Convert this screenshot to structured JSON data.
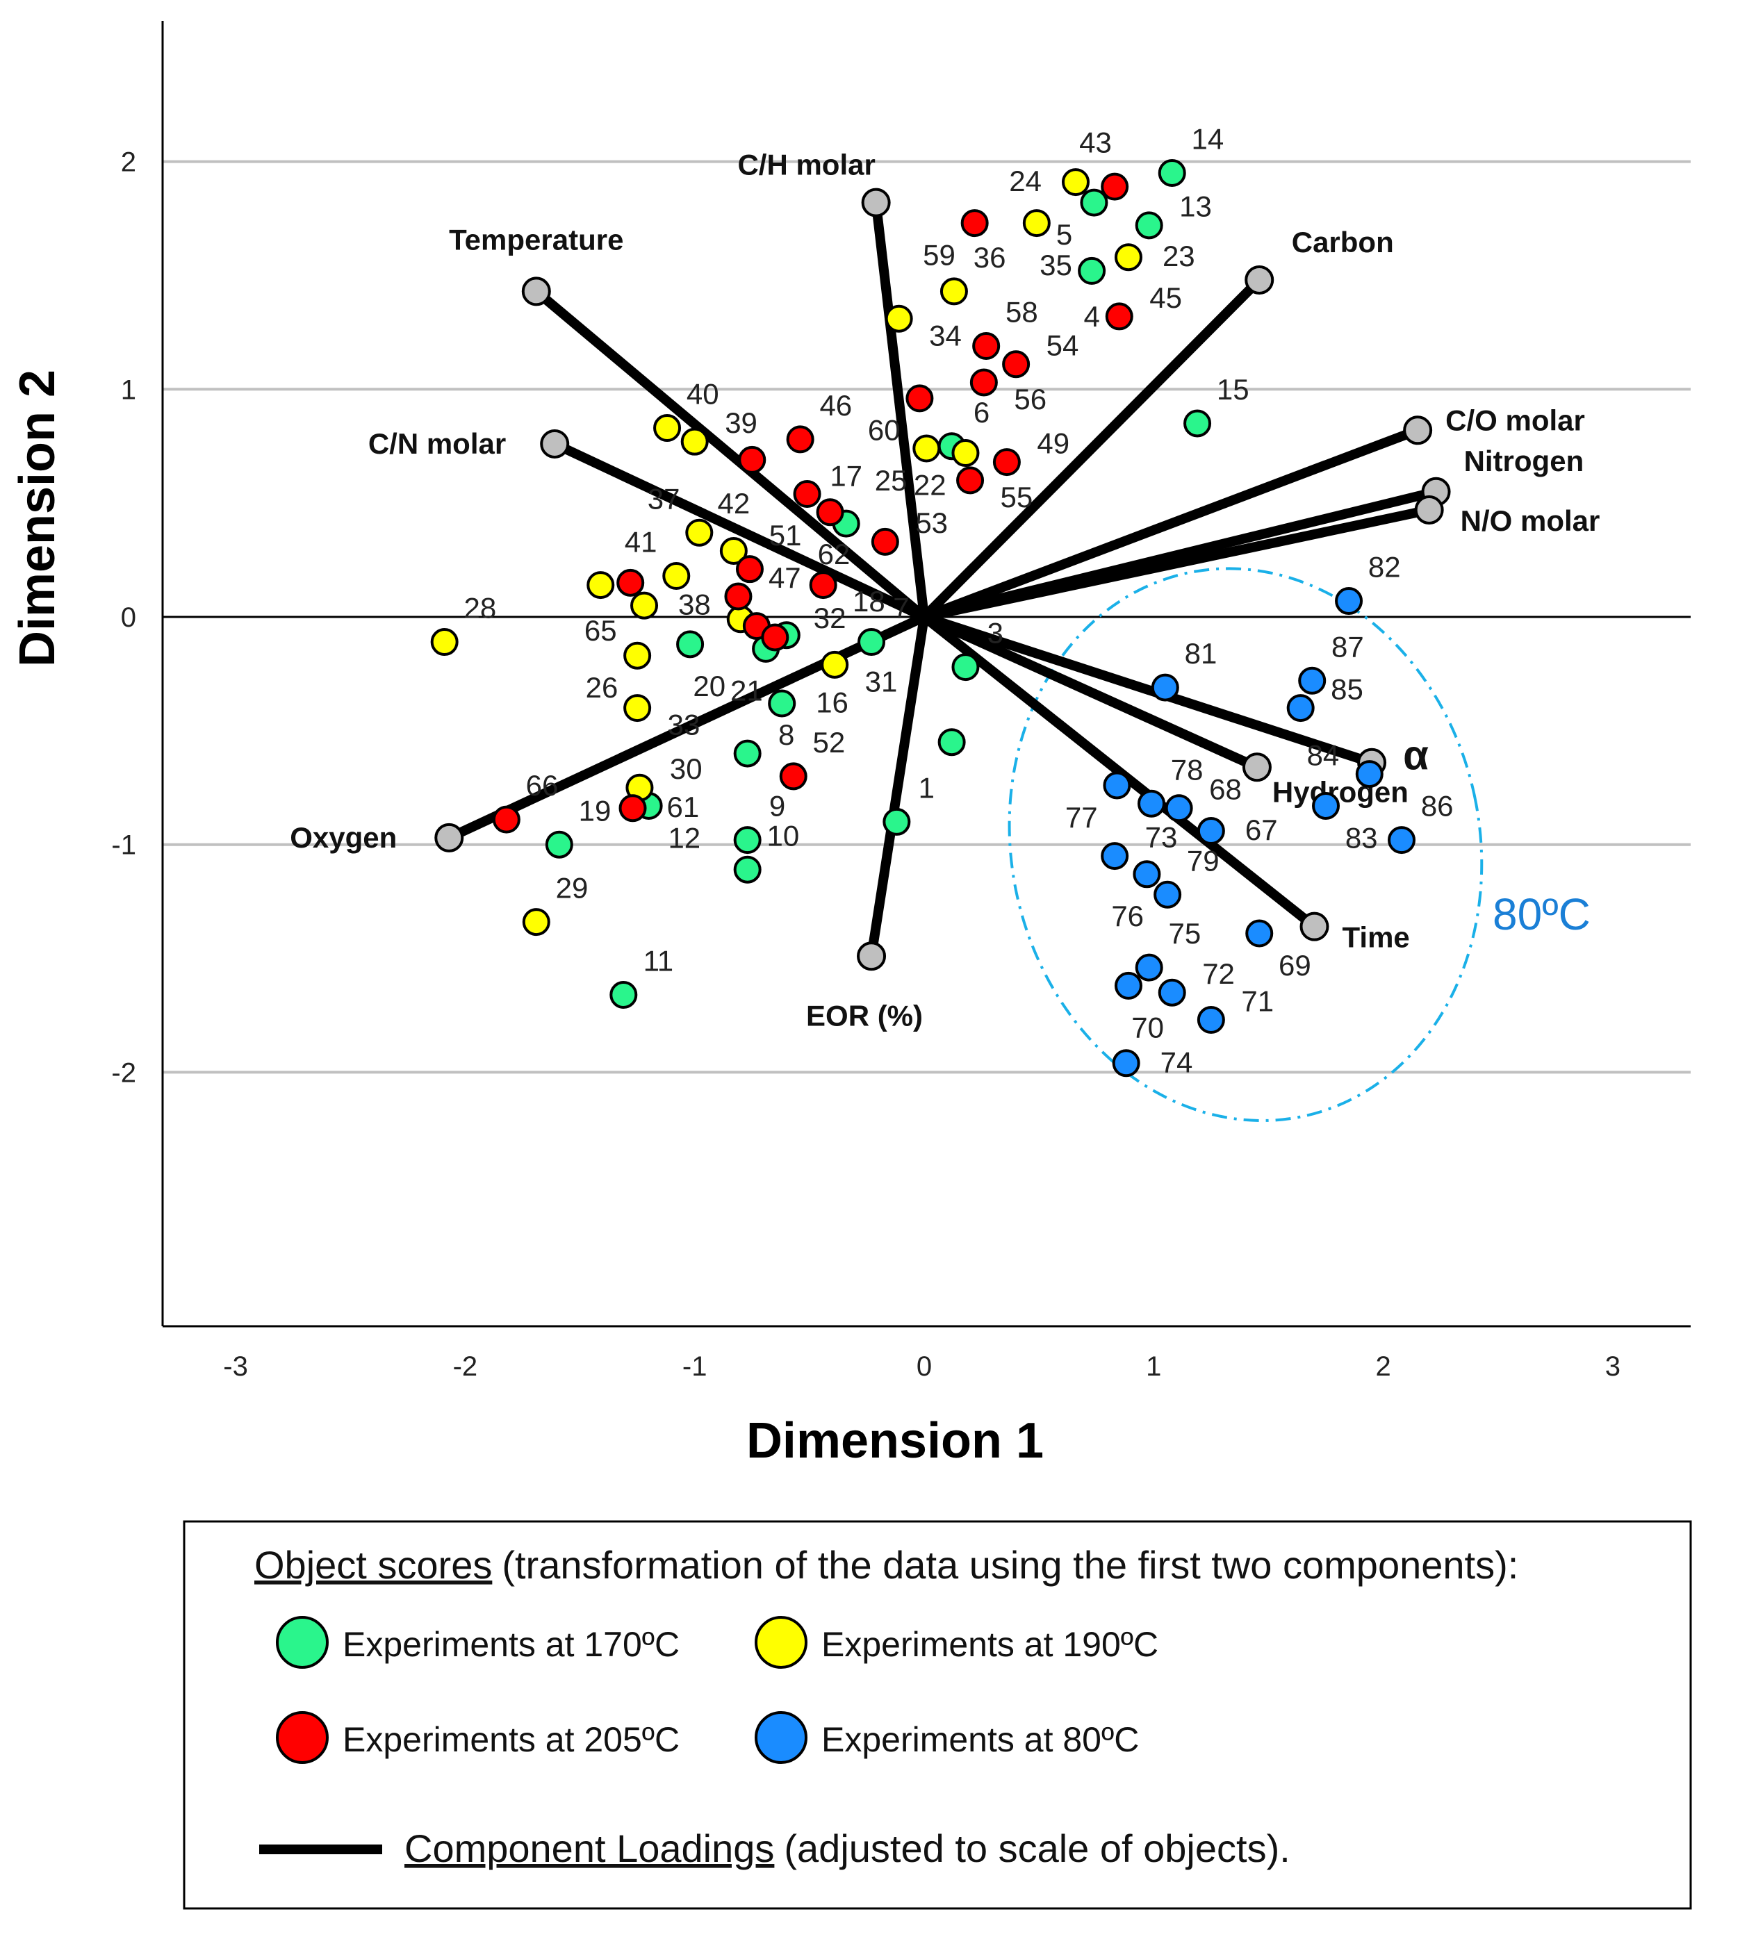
{
  "chart_data": {
    "type": "scatter",
    "subtype": "biplot",
    "xlabel": "Dimension 1",
    "ylabel": "Dimension 2",
    "xlim": [
      -3.32,
      3.34
    ],
    "ylim": [
      -3.12,
      2.62
    ],
    "xticks": [
      -3,
      -2,
      -1,
      0,
      1,
      2,
      3
    ],
    "yticks": [
      -2,
      -1,
      0,
      1,
      2
    ],
    "grid": "horizontal",
    "series": [
      {
        "name": "Experiments  at 170ºC",
        "color": "#2af58c",
        "points": [
          [
            1.08,
            1.95,
            "14"
          ],
          [
            0.98,
            1.72,
            "13"
          ],
          [
            0.74,
            1.82,
            "5"
          ],
          [
            0.73,
            1.52,
            "4"
          ],
          [
            1.19,
            0.85,
            "15"
          ],
          [
            0.12,
            0.75,
            "6"
          ],
          [
            -0.34,
            0.41,
            "17"
          ],
          [
            -0.6,
            -0.08,
            "18"
          ],
          [
            -0.69,
            -0.14,
            "21"
          ],
          [
            -1.02,
            -0.12,
            "20"
          ],
          [
            -0.23,
            -0.11,
            "7"
          ],
          [
            0.18,
            -0.22,
            "3"
          ],
          [
            -0.62,
            -0.38,
            "16"
          ],
          [
            -0.77,
            -0.6,
            "8"
          ],
          [
            0.12,
            -0.55,
            ""
          ],
          [
            -0.12,
            -0.9,
            "1"
          ],
          [
            -0.77,
            -0.98,
            "9"
          ],
          [
            -0.77,
            -1.11,
            "10"
          ],
          [
            -1.2,
            -0.83,
            "12"
          ],
          [
            -1.59,
            -1.0,
            "19"
          ],
          [
            -1.31,
            -1.66,
            "11"
          ]
        ]
      },
      {
        "name": "Experiments  at 190ºC",
        "color": "#ffff00",
        "points": [
          [
            0.66,
            1.91,
            "24"
          ],
          [
            0.49,
            1.73,
            "35"
          ],
          [
            0.89,
            1.58,
            "23"
          ],
          [
            0.13,
            1.43,
            "36"
          ],
          [
            -0.11,
            1.31,
            "34"
          ],
          [
            -1.12,
            0.83,
            "40"
          ],
          [
            -1.0,
            0.77,
            "39"
          ],
          [
            0.01,
            0.74,
            "25"
          ],
          [
            0.18,
            0.72,
            "22"
          ],
          [
            -0.98,
            0.37,
            "37"
          ],
          [
            -0.83,
            0.29,
            "42"
          ],
          [
            -1.08,
            0.18,
            "41"
          ],
          [
            -1.41,
            0.14,
            "65"
          ],
          [
            -1.22,
            0.05,
            "38"
          ],
          [
            -2.09,
            -0.11,
            "28"
          ],
          [
            -0.8,
            -0.01,
            "32"
          ],
          [
            -1.25,
            -0.17,
            "26"
          ],
          [
            -1.25,
            -0.4,
            "33"
          ],
          [
            -0.39,
            -0.21,
            "31"
          ],
          [
            -1.24,
            -0.75,
            "30"
          ],
          [
            -1.69,
            -1.34,
            "29"
          ]
        ]
      },
      {
        "name": "Experiments  at 205ºC",
        "color": "#ff0000",
        "points": [
          [
            0.83,
            1.89,
            "43"
          ],
          [
            0.22,
            1.73,
            "59"
          ],
          [
            0.85,
            1.32,
            "45"
          ],
          [
            0.27,
            1.19,
            "58"
          ],
          [
            0.4,
            1.11,
            "54"
          ],
          [
            0.26,
            1.03,
            "56"
          ],
          [
            -0.02,
            0.96,
            "60"
          ],
          [
            -0.54,
            0.78,
            "46"
          ],
          [
            -0.75,
            0.69,
            ""
          ],
          [
            0.36,
            0.68,
            "49"
          ],
          [
            0.2,
            0.6,
            "55"
          ],
          [
            -0.51,
            0.54,
            "62"
          ],
          [
            -0.41,
            0.46,
            ""
          ],
          [
            -0.17,
            0.33,
            "53"
          ],
          [
            -0.76,
            0.21,
            "51"
          ],
          [
            -0.44,
            0.14,
            ""
          ],
          [
            -0.81,
            0.09,
            "47"
          ],
          [
            -1.28,
            0.15,
            ""
          ],
          [
            -0.73,
            -0.04,
            ""
          ],
          [
            -0.65,
            -0.09,
            ""
          ],
          [
            -0.57,
            -0.7,
            "52"
          ],
          [
            -1.82,
            -0.89,
            "66"
          ],
          [
            -1.27,
            -0.84,
            "61"
          ]
        ]
      },
      {
        "name": "Experiments  at 80ºC",
        "color": "#1a8cff",
        "points": [
          [
            1.85,
            0.07,
            "82"
          ],
          [
            1.05,
            -0.31,
            "81"
          ],
          [
            1.69,
            -0.28,
            "87"
          ],
          [
            1.64,
            -0.4,
            "85"
          ],
          [
            1.94,
            -0.69,
            "84"
          ],
          [
            0.84,
            -0.74,
            "77"
          ],
          [
            0.99,
            -0.82,
            "78"
          ],
          [
            1.11,
            -0.84,
            "68"
          ],
          [
            1.75,
            -0.83,
            "83"
          ],
          [
            2.08,
            -0.98,
            "86"
          ],
          [
            1.25,
            -0.94,
            "67"
          ],
          [
            0.83,
            -1.05,
            "73"
          ],
          [
            0.97,
            -1.13,
            "76"
          ],
          [
            1.06,
            -1.22,
            "79"
          ],
          [
            1.46,
            -1.39,
            "69"
          ],
          [
            0.98,
            -1.54,
            "75"
          ],
          [
            0.89,
            -1.62,
            "70"
          ],
          [
            1.08,
            -1.65,
            "72"
          ],
          [
            1.25,
            -1.77,
            "71"
          ],
          [
            0.88,
            -1.96,
            "74"
          ]
        ]
      }
    ],
    "loadings": [
      {
        "name": "Temperature",
        "x": -1.69,
        "y": 1.43
      },
      {
        "name": "C/H molar",
        "x": -0.21,
        "y": 1.82
      },
      {
        "name": "Carbon",
        "x": 1.46,
        "y": 1.48
      },
      {
        "name": "C/O molar",
        "x": 2.15,
        "y": 0.82
      },
      {
        "name": "Nitrogen",
        "x": 2.23,
        "y": 0.55
      },
      {
        "name": "N/O molar",
        "x": 2.2,
        "y": 0.47
      },
      {
        "name": "α",
        "x": 1.95,
        "y": -0.64
      },
      {
        "name": "Hydrogen",
        "x": 1.45,
        "y": -0.66
      },
      {
        "name": "Time",
        "x": 1.7,
        "y": -1.36
      },
      {
        "name": "EOR (%)",
        "x": -0.23,
        "y": -1.49
      },
      {
        "name": "Oxygen",
        "x": -2.07,
        "y": -0.97
      },
      {
        "name": "C/N molar",
        "x": -1.61,
        "y": 0.76
      }
    ],
    "annotations": [
      {
        "type": "ellipse",
        "label": "80ºC",
        "cx": 1.4,
        "cy": -1.0,
        "rx": 1.02,
        "ry": 1.22,
        "color": "#1ab0e8",
        "label_color": "#1a7fd6"
      }
    ],
    "legend": {
      "placement": "bottom",
      "title": "Object scores",
      "title_rest": "(transformation of the data using the first two components):",
      "loadings_title": "Component Loadings",
      "loadings_rest": "(adjusted to scale of objects)."
    }
  }
}
